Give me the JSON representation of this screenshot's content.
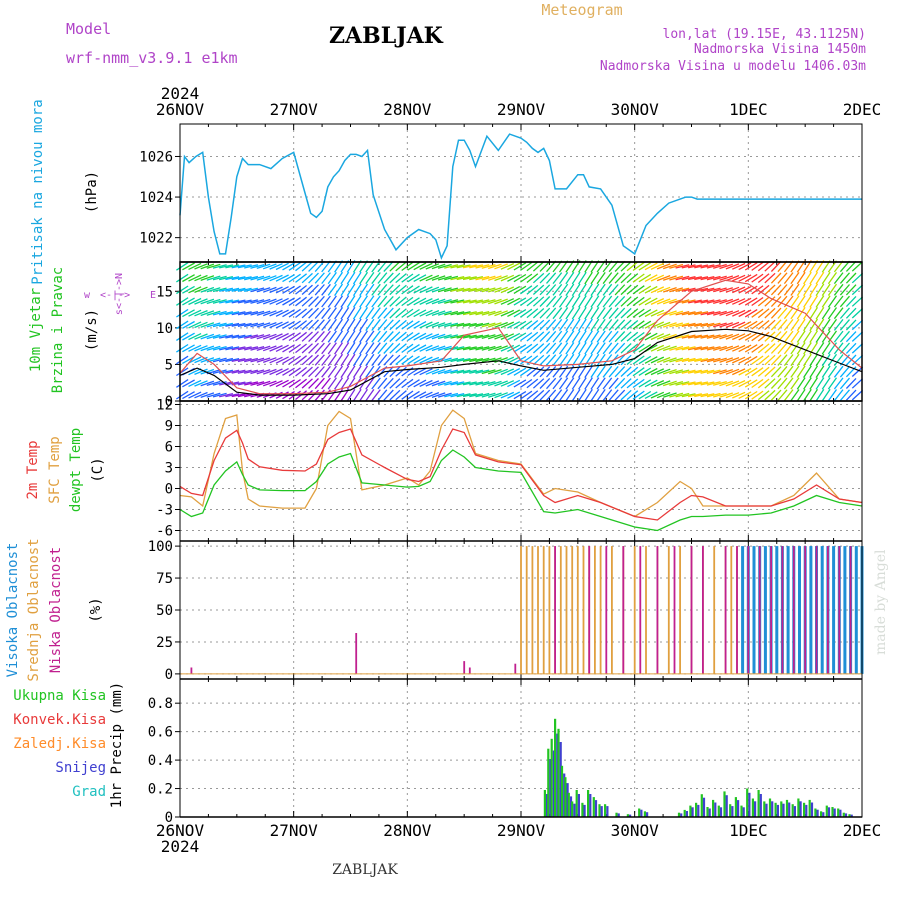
{
  "header": {
    "model_label": "Model",
    "model_name": "wrf-nmm_v3.9.1 e1km",
    "station": "ZABLJAK",
    "product": "Meteogram",
    "lonlat": "lon,lat (19.15E, 43.1125N)",
    "elevation": "Nadmorska Visina 1450m",
    "model_elevation": "Nadmorska Visina u modelu 1406.03m",
    "year_top": "2024",
    "year_bottom": "2024",
    "footer_station": "ZABLJAK",
    "credit": "made by Angel"
  },
  "colors": {
    "pressure": "#1aa7e0",
    "temp2m": "#e83a3a",
    "sfc": "#e0a040",
    "dew": "#22c422",
    "high_cloud": "#1f8fd6",
    "mid_cloud": "#e0a040",
    "low_cloud": "#c0208f",
    "total_precip": "#22c422",
    "conv_precip": "#e83a3a",
    "frozen_precip": "#ff8c2a",
    "snow": "#4040d0",
    "graupel": "#20c0c0",
    "model_text": "#b044c8",
    "meteogram_text": "#e0b060"
  },
  "time_axis": {
    "start_day": "26NOV",
    "labels": [
      "26NOV",
      "27NOV",
      "28NOV",
      "29NOV",
      "30NOV",
      "1DEC",
      "2DEC"
    ]
  },
  "chart_data": [
    {
      "type": "line",
      "name": "sea level pressure",
      "ylabel": "Pritisak na nivou mora",
      "unit": "(hPa)",
      "ylim": [
        1020.8,
        1027.6
      ],
      "yticks": [
        1022,
        1024,
        1026
      ],
      "x_days": [
        0,
        0.04,
        0.08,
        0.14,
        0.2,
        0.25,
        0.3,
        0.35,
        0.4,
        0.45,
        0.5,
        0.55,
        0.6,
        0.7,
        0.8,
        0.9,
        1.0,
        1.1,
        1.15,
        1.2,
        1.25,
        1.3,
        1.35,
        1.4,
        1.45,
        1.5,
        1.55,
        1.6,
        1.65,
        1.7,
        1.8,
        1.9,
        2.0,
        2.1,
        2.15,
        2.2,
        2.25,
        2.3,
        2.35,
        2.4,
        2.45,
        2.5,
        2.55,
        2.6,
        2.7,
        2.8,
        2.9,
        3.0,
        3.05,
        3.1,
        3.15,
        3.2,
        3.25,
        3.3,
        3.4,
        3.5,
        3.55,
        3.6,
        3.7,
        3.8,
        3.9,
        4.0,
        4.1,
        4.2,
        4.3,
        4.4,
        4.45,
        4.5,
        4.55,
        4.6,
        4.65,
        4.7,
        4.8,
        4.9,
        5.0,
        5.05,
        5.1,
        5.2,
        5.3,
        5.35,
        5.4,
        5.45,
        5.5,
        5.55,
        5.6,
        5.7,
        5.8,
        5.9,
        6.0
      ],
      "values": [
        1023.1,
        1026.0,
        1025.7,
        1026.0,
        1026.2,
        1024.0,
        1022.3,
        1021.2,
        1021.2,
        1023.0,
        1025.0,
        1025.9,
        1025.6,
        1025.6,
        1025.4,
        1025.9,
        1026.2,
        1024.2,
        1023.2,
        1023.0,
        1023.3,
        1024.5,
        1025.0,
        1025.3,
        1025.8,
        1026.1,
        1026.1,
        1026.0,
        1026.3,
        1024.1,
        1022.4,
        1021.4,
        1022.0,
        1022.4,
        1022.3,
        1022.2,
        1021.9,
        1021.0,
        1021.6,
        1025.5,
        1026.8,
        1026.8,
        1026.3,
        1025.5,
        1027.0,
        1026.3,
        1027.1,
        1026.9,
        1026.7,
        1026.4,
        1026.2,
        1026.4,
        1025.8,
        1024.4,
        1024.4,
        1025.1,
        1025.1,
        1024.5,
        1024.4,
        1023.6,
        1021.6,
        1021.2,
        1022.6,
        1023.2,
        1023.7,
        1023.9,
        1024.0,
        1024.0,
        1023.9,
        1023.9,
        1023.9,
        1023.9,
        1023.9,
        1023.9,
        1023.9,
        1023.9,
        1023.9,
        1023.9,
        1023.9,
        1023.9,
        1023.9,
        1023.9,
        1023.9,
        1023.9,
        1023.9,
        1023.9,
        1023.9,
        1023.9,
        1023.9
      ]
    },
    {
      "type": "line",
      "name": "10m wind",
      "ylabel": "10m Vjetar",
      "ylabel2": "Brzina i Pravac",
      "unit": "(m/s)",
      "legend_compass": [
        "w",
        "<-|->",
        "E"
      ],
      "legend_ns": "s<-|->N",
      "ylim": [
        0,
        19
      ],
      "yticks": [
        0,
        5,
        10,
        15
      ],
      "x_days": [
        0,
        0.15,
        0.3,
        0.5,
        0.7,
        1.0,
        1.3,
        1.5,
        1.8,
        2.0,
        2.3,
        2.5,
        2.8,
        3.0,
        3.2,
        3.5,
        3.8,
        4.0,
        4.2,
        4.5,
        4.8,
        5.0,
        5.2,
        5.5,
        5.8,
        6.0
      ],
      "values": [
        3.5,
        4.5,
        3.5,
        1.2,
        0.8,
        0.8,
        1.0,
        1.5,
        4.0,
        4.3,
        4.6,
        5.0,
        5.5,
        4.8,
        4.2,
        4.6,
        5.0,
        5.8,
        8.0,
        9.5,
        9.8,
        9.6,
        8.8,
        7.0,
        5.2,
        4.0
      ],
      "gust_values": [
        3.8,
        6.5,
        5.0,
        1.8,
        1.0,
        1.0,
        1.2,
        2.0,
        4.5,
        4.8,
        5.5,
        9.0,
        10.0,
        5.5,
        4.8,
        5.0,
        5.5,
        7.0,
        11.0,
        15.0,
        16.5,
        16.0,
        14.0,
        12.0,
        7.0,
        4.5
      ]
    },
    {
      "type": "line",
      "name": "temperature",
      "ylabel_lines": [
        "2m Temp",
        "SFC Temp",
        "dewpt Temp"
      ],
      "unit": "(C)",
      "ylim": [
        -7.5,
        12.5
      ],
      "yticks": [
        -6,
        -3,
        0,
        3,
        6,
        9,
        12
      ],
      "x_days": [
        0,
        0.1,
        0.2,
        0.3,
        0.4,
        0.5,
        0.55,
        0.6,
        0.7,
        0.9,
        1.1,
        1.2,
        1.3,
        1.4,
        1.5,
        1.6,
        1.8,
        2.0,
        2.1,
        2.2,
        2.3,
        2.4,
        2.5,
        2.6,
        2.8,
        3.0,
        3.2,
        3.3,
        3.5,
        3.7,
        4.0,
        4.2,
        4.4,
        4.5,
        4.6,
        4.8,
        5.0,
        5.2,
        5.4,
        5.6,
        5.8,
        6.0
      ],
      "temp2m": [
        0.3,
        -0.7,
        -1.0,
        4.0,
        7.2,
        8.3,
        6.5,
        4.2,
        3.1,
        2.6,
        2.5,
        3.5,
        7.0,
        8.0,
        8.5,
        4.8,
        3.0,
        1.3,
        1.0,
        1.7,
        5.5,
        8.5,
        8.0,
        4.8,
        3.8,
        3.4,
        -1.0,
        -2.0,
        -1.0,
        -2.0,
        -4.0,
        -4.5,
        -2.0,
        -1.0,
        -1.2,
        -2.5,
        -2.5,
        -2.5,
        -1.5,
        0.5,
        -1.5,
        -2.0
      ],
      "sfc": [
        -1.0,
        -1.2,
        -2.5,
        5.0,
        10.0,
        10.5,
        2.5,
        -1.5,
        -2.5,
        -2.8,
        -2.8,
        0.0,
        9.0,
        11.0,
        10.0,
        -0.2,
        0.5,
        1.5,
        0.5,
        2.5,
        9.0,
        11.2,
        10.0,
        5.0,
        4.0,
        3.5,
        -0.8,
        0.0,
        -0.5,
        -2.0,
        -4.0,
        -2.0,
        1.0,
        0.0,
        -2.5,
        -2.5,
        -2.5,
        -2.5,
        -1.0,
        2.2,
        -1.5,
        -2.0
      ],
      "dew": [
        -3.0,
        -4.0,
        -3.5,
        0.5,
        2.5,
        3.8,
        2.0,
        0.5,
        -0.2,
        -0.3,
        -0.3,
        1.0,
        3.5,
        4.5,
        5.0,
        0.8,
        0.5,
        0.2,
        0.3,
        1.0,
        4.0,
        5.5,
        4.5,
        3.0,
        2.5,
        2.3,
        -3.3,
        -3.5,
        -3.0,
        -4.0,
        -5.5,
        -6.0,
        -4.5,
        -4.0,
        -4.0,
        -3.8,
        -3.8,
        -3.5,
        -2.5,
        -1.0,
        -2.0,
        -2.5
      ]
    },
    {
      "type": "bar",
      "name": "cloud cover",
      "ylabel_lines": [
        "Visoka Oblacnost",
        "Srednja Oblacnost",
        "Niska Oblacnost"
      ],
      "unit": "(%)",
      "ylim": [
        -4,
        104
      ],
      "yticks": [
        0,
        25,
        50,
        75,
        100
      ],
      "high": {
        "x_days": [
          4.95,
          5.0,
          5.05,
          5.1,
          5.15,
          5.2,
          5.25,
          5.3,
          5.35,
          5.4,
          5.45,
          5.5,
          5.55,
          5.6,
          5.65,
          5.7,
          5.75,
          5.8,
          5.85,
          5.9,
          5.95,
          6.0
        ],
        "values": [
          100,
          100,
          100,
          100,
          100,
          100,
          100,
          100,
          100,
          100,
          100,
          100,
          100,
          100,
          100,
          100,
          100,
          100,
          100,
          100,
          100,
          100
        ]
      },
      "mid": {
        "x_days": [
          3.0,
          3.05,
          3.1,
          3.15,
          3.2,
          3.25,
          3.3,
          3.35,
          3.4,
          3.45,
          3.5,
          3.55,
          3.6,
          3.65,
          3.7,
          3.8,
          3.9,
          4.0,
          4.1,
          4.2,
          4.3,
          4.4,
          4.5,
          4.6,
          4.7,
          4.8,
          4.85,
          4.9,
          5.0,
          5.05,
          5.1,
          5.2,
          5.3,
          5.4,
          5.5,
          5.6,
          5.7,
          5.8,
          5.9
        ],
        "values": [
          100,
          100,
          100,
          100,
          100,
          100,
          100,
          100,
          100,
          100,
          100,
          100,
          100,
          100,
          100,
          100,
          100,
          100,
          100,
          100,
          100,
          100,
          100,
          100,
          100,
          100,
          100,
          100,
          100,
          85,
          100,
          100,
          100,
          100,
          100,
          100,
          100,
          100,
          100
        ]
      },
      "low": {
        "x_days": [
          0.1,
          1.55,
          2.5,
          2.55,
          2.95,
          3.3,
          3.6,
          3.75,
          3.9,
          4.05,
          4.2,
          4.35,
          4.5,
          4.6,
          4.8,
          4.9,
          5.0,
          5.1,
          5.2,
          5.3,
          5.4,
          5.5,
          5.6,
          5.7,
          5.8,
          5.9
        ],
        "values": [
          5,
          32,
          10,
          5,
          8,
          100,
          100,
          100,
          100,
          100,
          100,
          100,
          100,
          100,
          100,
          100,
          100,
          100,
          100,
          100,
          100,
          100,
          100,
          100,
          100,
          100
        ]
      }
    },
    {
      "type": "bar",
      "name": "precipitation",
      "ylabel": "1hr Precip",
      "unit": "(mm)",
      "legend": [
        "Ukupna Kisa",
        "Konvek.Kisa",
        "Zaledj.Kisa",
        "Snijeg",
        "Grad"
      ],
      "ylim": [
        0,
        0.97
      ],
      "yticks": [
        0,
        0.2,
        0.4,
        0.6,
        0.8
      ],
      "x_days": [
        3.22,
        3.25,
        3.28,
        3.31,
        3.34,
        3.37,
        3.4,
        3.43,
        3.46,
        3.5,
        3.55,
        3.6,
        3.65,
        3.7,
        3.75,
        3.85,
        3.95,
        4.05,
        4.1,
        4.4,
        4.45,
        4.5,
        4.55,
        4.6,
        4.65,
        4.7,
        4.75,
        4.8,
        4.85,
        4.9,
        4.95,
        5.0,
        5.05,
        5.1,
        5.15,
        5.2,
        5.25,
        5.3,
        5.35,
        5.4,
        5.45,
        5.5,
        5.55,
        5.6,
        5.65,
        5.7,
        5.75,
        5.8,
        5.85,
        5.9
      ],
      "values": [
        0.19,
        0.48,
        0.55,
        0.69,
        0.62,
        0.36,
        0.28,
        0.17,
        0.11,
        0.19,
        0.1,
        0.19,
        0.14,
        0.09,
        0.09,
        0.03,
        0.02,
        0.06,
        0.04,
        0.03,
        0.05,
        0.08,
        0.1,
        0.16,
        0.07,
        0.12,
        0.08,
        0.18,
        0.09,
        0.14,
        0.08,
        0.2,
        0.13,
        0.19,
        0.11,
        0.13,
        0.1,
        0.11,
        0.12,
        0.09,
        0.13,
        0.1,
        0.12,
        0.06,
        0.04,
        0.08,
        0.07,
        0.06,
        0.03,
        0.02
      ]
    }
  ]
}
